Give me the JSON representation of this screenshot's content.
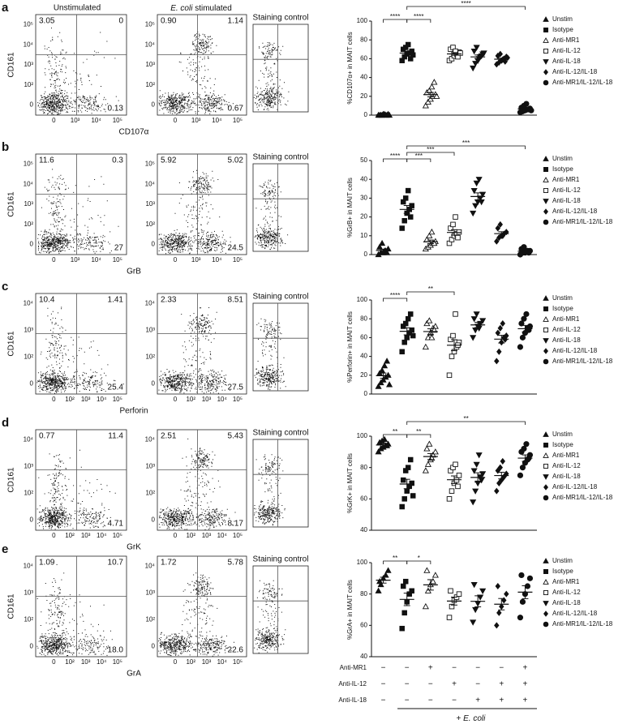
{
  "column_titles": {
    "unstim": "Unstimulated",
    "stim_italic": "E. coli",
    "stim_rest": "stimulated",
    "control": "Staining control"
  },
  "flow_panels": [
    {
      "letter": "a",
      "ylabel": "CD161",
      "xlabel": "CD107α",
      "yticks": [
        "10⁵",
        "10⁴",
        "10³",
        "10²",
        "0"
      ],
      "xticks": [
        "0",
        "10³",
        "10⁴",
        "10⁵"
      ],
      "unstim": {
        "ul": "3.05",
        "ur": "0",
        "lr": "0.13"
      },
      "stim": {
        "ul": "0.90",
        "ur": "1.14",
        "lr": "0.67"
      }
    },
    {
      "letter": "b",
      "ylabel": "CD161",
      "xlabel": "GrB",
      "yticks": [
        "10⁵",
        "10⁴",
        "10³",
        "10²",
        "0"
      ],
      "xticks": [
        "0",
        "10³",
        "10⁴",
        "10⁵"
      ],
      "unstim": {
        "ul": "11.6",
        "ur": "0.3",
        "lr": "27"
      },
      "stim": {
        "ul": "5.92",
        "ur": "5.02",
        "lr": "24.5"
      }
    },
    {
      "letter": "c",
      "ylabel": "CD161",
      "xlabel": "Perforin",
      "yticks": [
        "10⁴",
        "10³",
        "10²",
        "0"
      ],
      "xticks": [
        "0",
        "10²",
        "10³",
        "10⁴",
        "10⁵"
      ],
      "unstim": {
        "ul": "10.4",
        "ur": "1.41",
        "lr": "25.4"
      },
      "stim": {
        "ul": "2.33",
        "ur": "8.51",
        "lr": "27.5"
      }
    },
    {
      "letter": "d",
      "ylabel": "CD161",
      "xlabel": "GrK",
      "yticks": [
        "10⁴",
        "10³",
        "10²",
        "0"
      ],
      "xticks": [
        "0",
        "10²",
        "10³",
        "10⁴",
        "10⁵"
      ],
      "unstim": {
        "ul": "0.77",
        "ur": "11.4",
        "lr": "4.71"
      },
      "stim": {
        "ul": "2.51",
        "ur": "5.43",
        "lr": "8.17"
      }
    },
    {
      "letter": "e",
      "ylabel": "CD161",
      "xlabel": "GrA",
      "yticks": [
        "10⁴",
        "10³",
        "10²",
        "0"
      ],
      "xticks": [
        "0",
        "10²",
        "10³",
        "10⁴",
        "10⁵"
      ],
      "unstim": {
        "ul": "1.09",
        "ur": "10.7",
        "lr": "18.0"
      },
      "stim": {
        "ul": "1.72",
        "ur": "5.78",
        "lr": "22.6"
      }
    }
  ],
  "chart_data": [
    {
      "type": "scatter",
      "ylabel": "%CD107α+ in MAIT cells",
      "ylim": [
        0,
        100
      ],
      "yticks": [
        0,
        20,
        40,
        60,
        80,
        100
      ],
      "series": [
        {
          "name": "Unstim",
          "marker": "triangle",
          "filled": true,
          "values": [
            0,
            0,
            1,
            0,
            1,
            0,
            0,
            1,
            0,
            0
          ]
        },
        {
          "name": "Isotype",
          "marker": "square",
          "filled": true,
          "values": [
            58,
            62,
            65,
            66,
            68,
            70,
            72,
            75,
            60,
            64
          ]
        },
        {
          "name": "Anti-MR1",
          "marker": "triangle",
          "filled": false,
          "values": [
            10,
            14,
            17,
            20,
            22,
            24,
            26,
            30,
            35,
            20
          ]
        },
        {
          "name": "Anti-IL-12",
          "marker": "square",
          "filled": false,
          "values": [
            58,
            60,
            63,
            65,
            67,
            70,
            72,
            68,
            62,
            66
          ]
        },
        {
          "name": "Anti-IL-18",
          "marker": "down-triangle",
          "filled": true,
          "values": [
            50,
            55,
            58,
            62,
            65,
            68,
            72,
            60,
            63,
            66
          ]
        },
        {
          "name": "Anti-IL-12/IL-18",
          "marker": "diamond",
          "filled": true,
          "values": [
            54,
            56,
            58,
            60,
            62,
            63,
            65,
            59,
            57,
            61
          ]
        },
        {
          "name": "Anti-MR1/IL-12/IL-18",
          "marker": "circle",
          "filled": true,
          "values": [
            3,
            4,
            5,
            6,
            7,
            8,
            10,
            12,
            6,
            5
          ]
        }
      ],
      "significance": [
        {
          "label": "****",
          "from": "Unstim",
          "to": "Isotype"
        },
        {
          "label": "****",
          "from": "Isotype",
          "to": "Anti-MR1"
        },
        {
          "label": "****",
          "from": "Isotype",
          "to": "Anti-MR1/IL-12/IL-18"
        }
      ]
    },
    {
      "type": "scatter",
      "ylabel": "%GrB+ in MAIT cells",
      "ylim": [
        0,
        50
      ],
      "yticks": [
        0,
        10,
        20,
        30,
        40,
        50
      ],
      "series": [
        {
          "name": "Unstim",
          "marker": "triangle",
          "filled": true,
          "values": [
            0,
            1,
            1,
            2,
            3,
            4,
            6,
            2,
            1
          ]
        },
        {
          "name": "Isotype",
          "marker": "square",
          "filled": true,
          "values": [
            14,
            18,
            22,
            24,
            26,
            28,
            30,
            34,
            20
          ]
        },
        {
          "name": "Anti-MR1",
          "marker": "triangle",
          "filled": false,
          "values": [
            3,
            4,
            5,
            6,
            7,
            8,
            10,
            12,
            6
          ]
        },
        {
          "name": "Anti-IL-12",
          "marker": "square",
          "filled": false,
          "values": [
            6,
            8,
            10,
            11,
            12,
            14,
            16,
            20,
            9
          ]
        },
        {
          "name": "Anti-IL-18",
          "marker": "down-triangle",
          "filled": true,
          "values": [
            22,
            26,
            28,
            30,
            32,
            34,
            38,
            40,
            28
          ]
        },
        {
          "name": "Anti-IL-12/IL-18",
          "marker": "diamond",
          "filled": true,
          "values": [
            7,
            9,
            10,
            11,
            12,
            14,
            16,
            10
          ]
        },
        {
          "name": "Anti-MR1/IL-12/IL-18",
          "marker": "circle",
          "filled": true,
          "values": [
            0,
            1,
            1,
            2,
            2,
            3,
            4,
            2,
            1
          ]
        }
      ],
      "significance": [
        {
          "label": "****",
          "from": "Unstim",
          "to": "Isotype"
        },
        {
          "label": "***",
          "from": "Isotype",
          "to": "Anti-MR1"
        },
        {
          "label": "***",
          "from": "Isotype",
          "to": "Anti-IL-12"
        },
        {
          "label": "***",
          "from": "Isotype",
          "to": "Anti-MR1/IL-12/IL-18"
        }
      ]
    },
    {
      "type": "scatter",
      "ylabel": "%Perforin+ in MAIT cells",
      "ylim": [
        0,
        100
      ],
      "yticks": [
        0,
        20,
        40,
        60,
        80,
        100
      ],
      "series": [
        {
          "name": "Unstim",
          "marker": "triangle",
          "filled": true,
          "values": [
            8,
            12,
            15,
            18,
            20,
            22,
            25,
            30,
            35,
            10
          ]
        },
        {
          "name": "Isotype",
          "marker": "square",
          "filled": true,
          "values": [
            45,
            55,
            60,
            65,
            68,
            72,
            75,
            80,
            85,
            62
          ]
        },
        {
          "name": "Anti-MR1",
          "marker": "triangle",
          "filled": false,
          "values": [
            50,
            60,
            65,
            70,
            72,
            75,
            78,
            60,
            68
          ]
        },
        {
          "name": "Anti-IL-12",
          "marker": "square",
          "filled": false,
          "values": [
            20,
            40,
            45,
            50,
            55,
            58,
            62,
            85,
            52
          ]
        },
        {
          "name": "Anti-IL-18",
          "marker": "down-triangle",
          "filled": true,
          "values": [
            60,
            68,
            72,
            75,
            78,
            80,
            85,
            70
          ]
        },
        {
          "name": "Anti-IL-12/IL-18",
          "marker": "diamond",
          "filled": true,
          "values": [
            35,
            45,
            55,
            60,
            62,
            65,
            70,
            75,
            58
          ]
        },
        {
          "name": "Anti-MR1/IL-12/IL-18",
          "marker": "circle",
          "filled": true,
          "values": [
            50,
            60,
            65,
            70,
            72,
            75,
            80,
            85,
            68
          ]
        }
      ],
      "significance": [
        {
          "label": "****",
          "from": "Unstim",
          "to": "Isotype"
        },
        {
          "label": "**",
          "from": "Isotype",
          "to": "Anti-IL-12"
        }
      ]
    },
    {
      "type": "scatter",
      "ylabel": "%GrK+ in MAIT cells",
      "ylim": [
        40,
        100
      ],
      "yticks": [
        40,
        60,
        80,
        100
      ],
      "series": [
        {
          "name": "Unstim",
          "marker": "triangle",
          "filled": true,
          "values": [
            90,
            92,
            93,
            94,
            95,
            96,
            97,
            98,
            94
          ]
        },
        {
          "name": "Isotype",
          "marker": "square",
          "filled": true,
          "values": [
            55,
            60,
            65,
            68,
            70,
            72,
            78,
            80,
            85,
            62
          ]
        },
        {
          "name": "Anti-MR1",
          "marker": "triangle",
          "filled": false,
          "values": [
            78,
            82,
            85,
            88,
            90,
            92,
            95,
            86
          ]
        },
        {
          "name": "Anti-IL-12",
          "marker": "square",
          "filled": false,
          "values": [
            60,
            65,
            70,
            72,
            75,
            78,
            80,
            82,
            68
          ]
        },
        {
          "name": "Anti-IL-18",
          "marker": "down-triangle",
          "filled": true,
          "values": [
            58,
            65,
            70,
            74,
            76,
            78,
            82,
            88,
            72
          ]
        },
        {
          "name": "Anti-IL-12/IL-18",
          "marker": "diamond",
          "filled": true,
          "values": [
            65,
            70,
            72,
            74,
            76,
            78,
            80,
            84
          ]
        },
        {
          "name": "Anti-MR1/IL-12/IL-18",
          "marker": "circle",
          "filled": true,
          "values": [
            75,
            80,
            83,
            85,
            88,
            90,
            92,
            95,
            86
          ]
        }
      ],
      "significance": [
        {
          "label": "**",
          "from": "Unstim",
          "to": "Isotype"
        },
        {
          "label": "**",
          "from": "Isotype",
          "to": "Anti-MR1"
        },
        {
          "label": "**",
          "from": "Isotype",
          "to": "Anti-MR1/IL-12/IL-18"
        }
      ]
    },
    {
      "type": "scatter",
      "ylabel": "%GrA+ in MAIT cells",
      "ylim": [
        40,
        100
      ],
      "yticks": [
        40,
        60,
        80,
        100
      ],
      "series": [
        {
          "name": "Unstim",
          "marker": "triangle",
          "filled": true,
          "values": [
            82,
            86,
            90,
            92,
            95,
            88
          ]
        },
        {
          "name": "Isotype",
          "marker": "square",
          "filled": true,
          "values": [
            58,
            68,
            75,
            80,
            82,
            85,
            88
          ]
        },
        {
          "name": "Anti-MR1",
          "marker": "triangle",
          "filled": false,
          "values": [
            72,
            82,
            86,
            88,
            92,
            95
          ]
        },
        {
          "name": "Anti-IL-12",
          "marker": "square",
          "filled": false,
          "values": [
            65,
            72,
            76,
            78,
            80,
            82
          ]
        },
        {
          "name": "Anti-IL-18",
          "marker": "down-triangle",
          "filled": true,
          "values": [
            62,
            70,
            74,
            78,
            82,
            86
          ]
        },
        {
          "name": "Anti-IL-12/IL-18",
          "marker": "diamond",
          "filled": true,
          "values": [
            60,
            68,
            72,
            76,
            80,
            85
          ]
        },
        {
          "name": "Anti-MR1/IL-12/IL-18",
          "marker": "circle",
          "filled": true,
          "values": [
            65,
            75,
            80,
            85,
            90,
            92
          ]
        }
      ],
      "significance": [
        {
          "label": "**",
          "from": "Unstim",
          "to": "Isotype"
        },
        {
          "label": "*",
          "from": "Isotype",
          "to": "Anti-MR1"
        }
      ]
    }
  ],
  "treatment_table": {
    "rows": [
      {
        "label": "Anti-MR1",
        "signs": [
          "−",
          "−",
          "+",
          "−",
          "−",
          "−",
          "+"
        ]
      },
      {
        "label": "Anti-IL-12",
        "signs": [
          "−",
          "−",
          "−",
          "+",
          "−",
          "+",
          "+"
        ]
      },
      {
        "label": "Anti-IL-18",
        "signs": [
          "−",
          "−",
          "−",
          "−",
          "+",
          "+",
          "+"
        ]
      }
    ],
    "footer_prefix": "+",
    "footer_italic": "E. coli"
  }
}
